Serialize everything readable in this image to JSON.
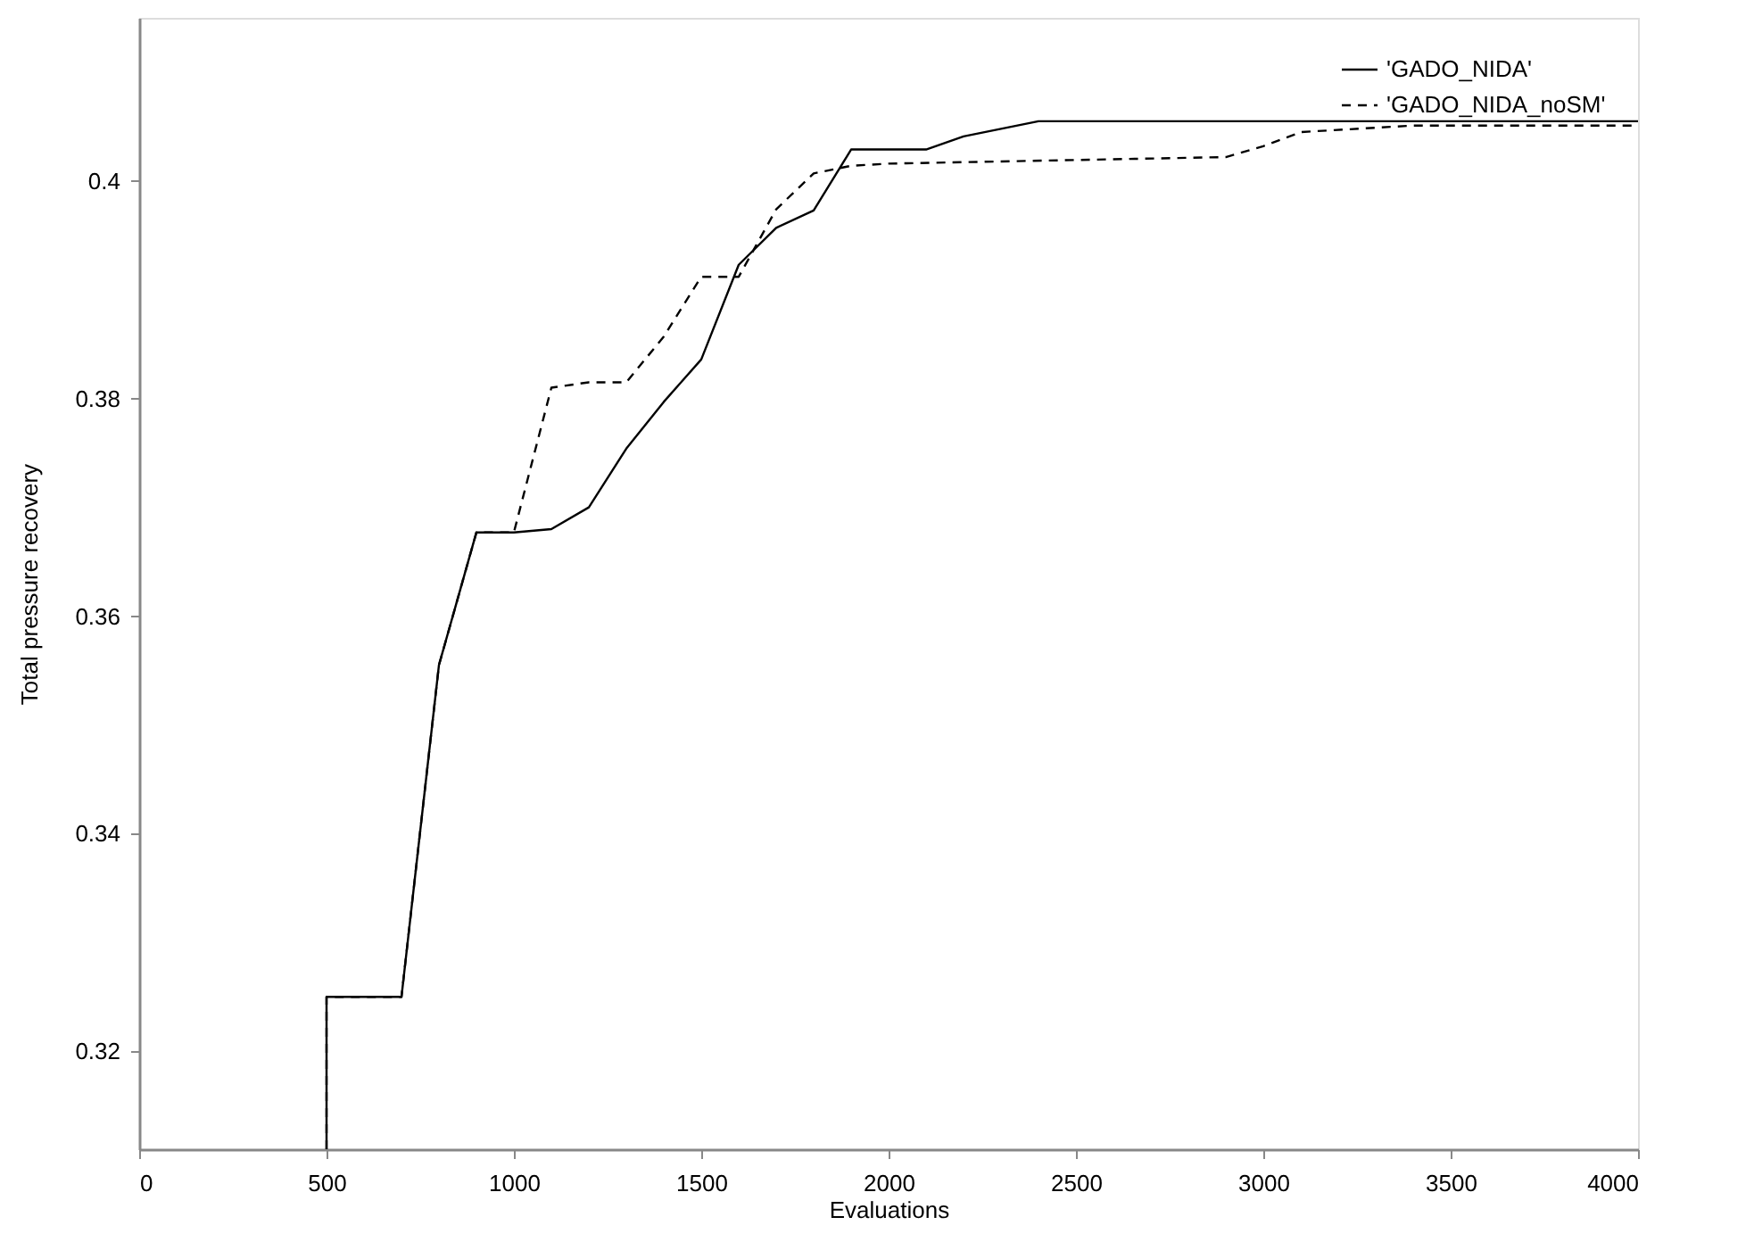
{
  "chart_data": {
    "type": "line",
    "xlabel": "Evaluations",
    "ylabel": "Total pressure recovery",
    "xlim": [
      0,
      4000
    ],
    "xticks": [
      0,
      500,
      1000,
      1500,
      2000,
      2500,
      3000,
      3500,
      4000
    ],
    "ylim": [
      0.311,
      0.415
    ],
    "yticks": [
      0.32,
      0.34,
      0.36,
      0.38,
      0.4
    ],
    "grid": false,
    "legend": "top right",
    "marker": "none",
    "series": [
      {
        "name": "'GADO_NIDA'",
        "color": "#000000",
        "line_style": "solid",
        "x": [
          500,
          500,
          700,
          800,
          900,
          1000,
          1100,
          1200,
          1300,
          1400,
          1500,
          1600,
          1700,
          1800,
          1900,
          2100,
          2200,
          2400,
          4000
        ],
        "values": [
          0.311,
          0.325,
          0.325,
          0.3555,
          0.3677,
          0.3677,
          0.368,
          0.37,
          0.3754,
          0.3797,
          0.3836,
          0.3923,
          0.3957,
          0.3973,
          0.4029,
          0.4029,
          0.4041,
          0.4055,
          0.4055
        ]
      },
      {
        "name": "'GADO_NIDA_noSM'",
        "color": "#000000",
        "line_style": "dashed",
        "x": [
          500,
          500,
          700,
          800,
          900,
          1000,
          1100,
          1200,
          1300,
          1400,
          1500,
          1600,
          1700,
          1800,
          1900,
          2000,
          2900,
          3000,
          3100,
          3400,
          4000
        ],
        "values": [
          0.311,
          0.325,
          0.325,
          0.3555,
          0.3677,
          0.3677,
          0.381,
          0.3815,
          0.3815,
          0.3857,
          0.3912,
          0.3912,
          0.3974,
          0.4007,
          0.4014,
          0.4016,
          0.4022,
          0.4032,
          0.4045,
          0.4051,
          0.4051
        ]
      }
    ]
  }
}
